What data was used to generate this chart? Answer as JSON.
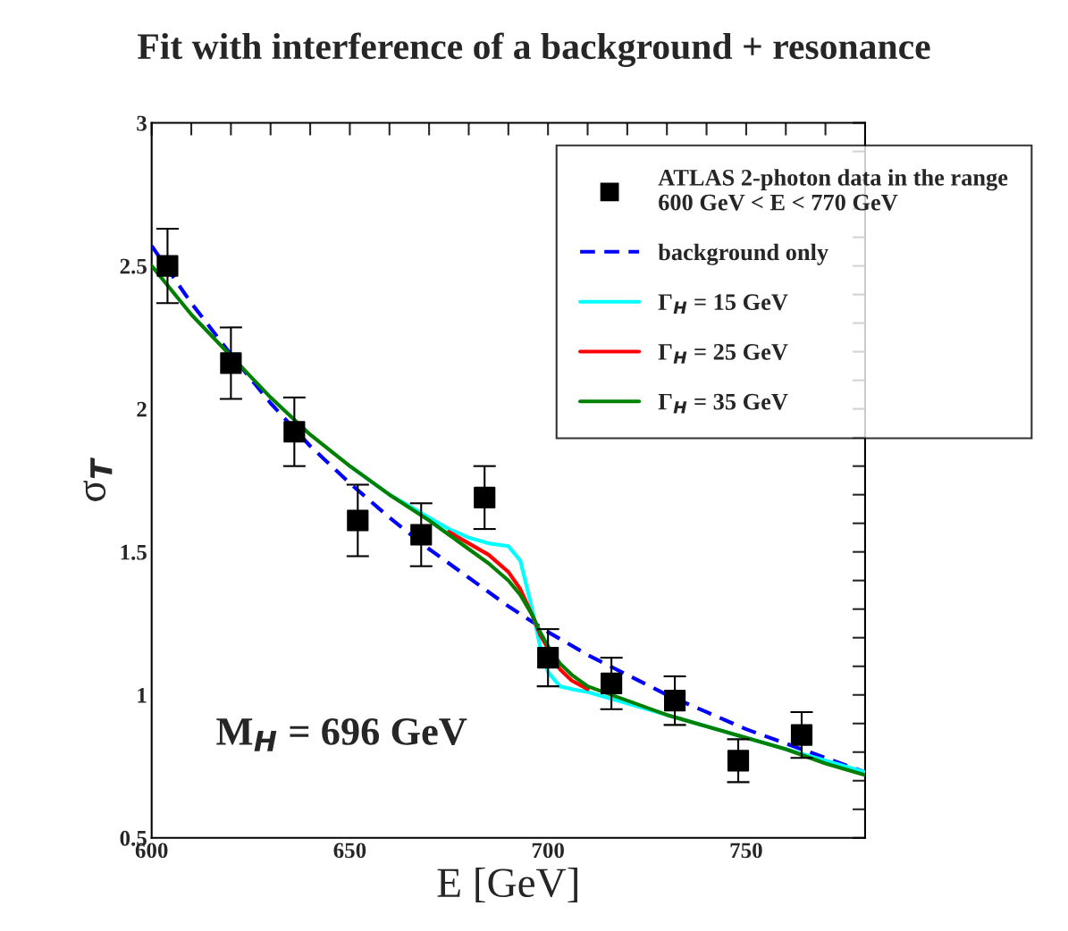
{
  "chart_data": {
    "type": "line",
    "title": "Fit with interference of a background + resonance",
    "xlabel": "E [GeV]",
    "ylabel": "σ$_{T}$",
    "xlim": [
      600,
      780
    ],
    "ylim": [
      0.5,
      3
    ],
    "xticks": [
      600,
      {
        "value": 610,
        "label": null
      },
      {
        "value": 620,
        "label": null
      },
      {
        "value": 630,
        "label": null
      },
      {
        "value": 640,
        "label": null
      },
      650,
      {
        "value": 660,
        "label": null
      },
      {
        "value": 670,
        "label": null
      },
      {
        "value": 680,
        "label": null
      },
      {
        "value": 690,
        "label": null
      },
      700,
      {
        "value": 710,
        "label": null
      },
      {
        "value": 720,
        "label": null
      },
      {
        "value": 730,
        "label": null
      },
      {
        "value": 740,
        "label": null
      },
      750,
      {
        "value": 760,
        "label": null
      },
      {
        "value": 770,
        "label": null
      }
    ],
    "yticks": [
      0.5,
      {
        "value": 0.6,
        "label": null
      },
      {
        "value": 0.7,
        "label": null
      },
      {
        "value": 0.8,
        "label": null
      },
      {
        "value": 0.9,
        "label": null
      },
      1,
      {
        "value": 1.1,
        "label": null
      },
      {
        "value": 1.2,
        "label": null
      },
      {
        "value": 1.3,
        "label": null
      },
      {
        "value": 1.4,
        "label": null
      },
      1.5,
      {
        "value": 1.6,
        "label": null
      },
      {
        "value": 1.7,
        "label": null
      },
      {
        "value": 1.8,
        "label": null
      },
      {
        "value": 1.9,
        "label": null
      },
      2,
      {
        "value": 2.1,
        "label": null
      },
      {
        "value": 2.2,
        "label": null
      },
      {
        "value": 2.3,
        "label": null
      },
      {
        "value": 2.4,
        "label": null
      },
      2.5,
      {
        "value": 2.6,
        "label": null
      },
      {
        "value": 2.7,
        "label": null
      },
      {
        "value": 2.8,
        "label": null
      },
      {
        "value": 2.9,
        "label": null
      },
      3
    ],
    "grid": false,
    "legend": "top right",
    "annotations": [
      "M$_{H}$ = 696 GeV"
    ],
    "series": [
      {
        "name": "ATLAS 2-photon data in the range\n600 GeV < E < 770 GeV",
        "type": "scatter",
        "marker": "square",
        "color": "#000000",
        "x": [
          604,
          620,
          636,
          652,
          668,
          684,
          700,
          716,
          732,
          748,
          764
        ],
        "values": [
          2.5,
          2.16,
          1.92,
          1.61,
          1.56,
          1.69,
          1.13,
          1.04,
          0.98,
          0.77,
          0.86
        ],
        "errors": [
          0.13,
          0.125,
          0.12,
          0.125,
          0.11,
          0.11,
          0.1,
          0.09,
          0.085,
          0.075,
          0.08
        ]
      },
      {
        "name": "background only",
        "line_style": "dashed",
        "color": "#0000ff",
        "x": [
          600,
          610,
          620,
          630,
          640,
          650,
          660,
          670,
          680,
          690,
          700,
          710,
          720,
          730,
          740,
          750,
          760,
          770,
          780
        ],
        "values": [
          2.57,
          2.37,
          2.19,
          2.02,
          1.87,
          1.74,
          1.62,
          1.51,
          1.41,
          1.31,
          1.22,
          1.14,
          1.07,
          1.0,
          0.94,
          0.88,
          0.83,
          0.78,
          0.73
        ]
      },
      {
        "name": "Γ$_{H}$ = 15 GeV",
        "line_style": "solid",
        "color": "#00ffff",
        "x": [
          650,
          660,
          670,
          675,
          680,
          685,
          690,
          693,
          696,
          698,
          700,
          703,
          706,
          710,
          720,
          730,
          740,
          750,
          760,
          770,
          780
        ],
        "values": [
          1.8,
          1.7,
          1.62,
          1.58,
          1.55,
          1.53,
          1.52,
          1.47,
          1.3,
          1.17,
          1.08,
          1.03,
          1.02,
          1.01,
          0.97,
          0.93,
          0.89,
          0.85,
          0.81,
          0.77,
          0.73
        ]
      },
      {
        "name": "Γ$_{H}$ = 25 GeV",
        "line_style": "solid",
        "color": "#ff0000",
        "x": [
          675,
          680,
          685,
          690,
          693,
          696,
          698,
          703,
          706,
          710
        ],
        "values": [
          1.57,
          1.53,
          1.49,
          1.43,
          1.37,
          1.28,
          1.21,
          1.09,
          1.05,
          1.02
        ]
      },
      {
        "name": "Γ$_{H}$ = 35 GeV",
        "line_style": "solid",
        "color": "#008000",
        "x": [
          600,
          610,
          630,
          640,
          650,
          660,
          670,
          675,
          680,
          685,
          690,
          693,
          696,
          698,
          700,
          703,
          706,
          710,
          720,
          730,
          740,
          750,
          760,
          770,
          780
        ],
        "values": [
          2.5,
          2.33,
          2.04,
          1.91,
          1.8,
          1.7,
          1.61,
          1.56,
          1.51,
          1.46,
          1.4,
          1.35,
          1.28,
          1.22,
          1.17,
          1.11,
          1.07,
          1.03,
          0.98,
          0.93,
          0.89,
          0.85,
          0.81,
          0.76,
          0.72
        ]
      }
    ]
  }
}
